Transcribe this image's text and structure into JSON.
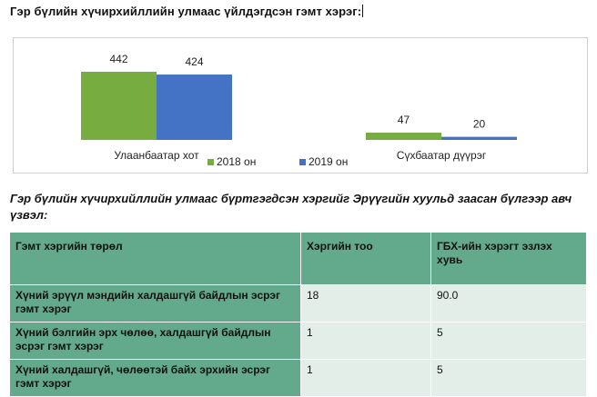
{
  "title": "Гэр бүлийн хүчирхийллийн улмаас үйлдэгдсэн гэмт хэрэг:",
  "chart_data": {
    "type": "bar",
    "categories": [
      "Улаанбаатар хот",
      "Сүхбаатар дүүрэг"
    ],
    "series": [
      {
        "name": "2018 он",
        "values": [
          442,
          47
        ],
        "color": "#77ac41"
      },
      {
        "name": "2019 он",
        "values": [
          424,
          20
        ],
        "color": "#4472c4"
      }
    ],
    "data_labels": true,
    "legend": "bottom",
    "grid": false
  },
  "subtitle": "Гэр бүлийн хүчирхийллийн улмаас бүртгэгдсэн хэргийг Эрүүгийн хуульд заасан бүлгээр авч үзвэл:",
  "table": {
    "headers": [
      "Гэмт хэргийн төрөл",
      "Хэргийн тоо",
      "ГБХ-ийн хэрэгт эзлэх хувь"
    ],
    "rows": [
      [
        "Хүний эрүүл мэндийн халдашгүй байдлын эсрэг гэмт хэрэг",
        "18",
        "90.0"
      ],
      [
        "Хүний бэлгийн эрх чөлөө, халдашгүй байдлын эсрэг гэмт хэрэг",
        "1",
        "5"
      ],
      [
        "Хүний халдашгүй, чөлөөтэй байх эрхийн эсрэг гэмт хэрэг",
        "1",
        "5"
      ]
    ]
  }
}
